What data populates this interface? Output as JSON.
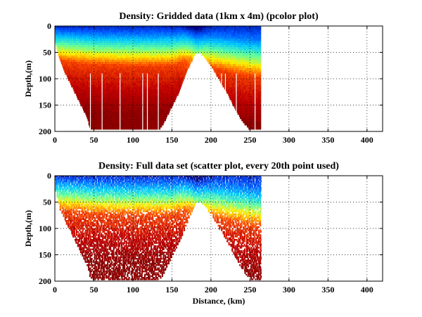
{
  "figure": {
    "background": "#ffffff"
  },
  "chart_data": [
    {
      "type": "heatmap",
      "title": "Density: Gridded data (1km x 4m) (pcolor plot)",
      "xlabel": "",
      "ylabel": "Depth,(m)",
      "xlim": [
        0,
        420
      ],
      "ylim": [
        0,
        200
      ],
      "y_reversed": true,
      "x_ticks": [
        "0",
        "50",
        "100",
        "150",
        "200",
        "250",
        "300",
        "350",
        "400"
      ],
      "y_ticks": [
        "0",
        "50",
        "100",
        "150",
        "200"
      ],
      "grid": "dotted",
      "data_x_range_km": [
        0,
        264
      ],
      "colormap": [
        "#00007f",
        "#0050ff",
        "#00c8ff",
        "#60ff9f",
        "#ffef00",
        "#ff5000",
        "#c00000",
        "#7f0000"
      ],
      "bottom_depth_profile": {
        "distance_km": [
          0,
          5,
          10,
          20,
          30,
          40,
          45,
          50,
          60,
          80,
          100,
          120,
          130,
          135,
          140,
          150,
          160,
          170,
          180,
          185,
          190,
          200,
          210,
          220,
          230,
          240,
          250,
          255,
          260,
          264
        ],
        "depth_m": [
          30,
          60,
          80,
          110,
          140,
          170,
          195,
          196,
          196,
          196,
          196,
          196,
          196,
          192,
          180,
          150,
          120,
          80,
          50,
          48,
          55,
          75,
          100,
          125,
          155,
          180,
          196,
          196,
          196,
          196
        ]
      },
      "pycnocline_depth_m": {
        "distance_km": [
          0,
          50,
          100,
          150,
          175,
          185,
          200,
          250,
          264
        ],
        "depth_m": [
          20,
          28,
          30,
          30,
          15,
          20,
          35,
          50,
          52
        ]
      }
    },
    {
      "type": "scatter",
      "title": "Density: Full data set (scatter plot, every 20th point used)",
      "xlabel": "Distance, (km)",
      "ylabel": "Depth,(m)",
      "xlim": [
        0,
        420
      ],
      "ylim": [
        0,
        200
      ],
      "y_reversed": true,
      "x_ticks": [
        "0",
        "50",
        "100",
        "150",
        "200",
        "250",
        "300",
        "350",
        "400"
      ],
      "y_ticks": [
        "0",
        "50",
        "100",
        "150",
        "200"
      ],
      "grid": "dotted",
      "data_x_range_km": [
        0,
        264
      ],
      "colormap": [
        "#00007f",
        "#0050ff",
        "#00c8ff",
        "#60ff9f",
        "#ffef00",
        "#ff5000",
        "#c00000",
        "#7f0000"
      ],
      "bottom_depth_profile": {
        "distance_km": [
          0,
          5,
          10,
          20,
          30,
          40,
          45,
          50,
          60,
          80,
          100,
          120,
          130,
          135,
          140,
          150,
          160,
          170,
          180,
          185,
          190,
          200,
          210,
          220,
          230,
          240,
          250,
          255,
          260,
          264
        ],
        "depth_m": [
          30,
          60,
          80,
          110,
          140,
          170,
          195,
          196,
          196,
          196,
          196,
          196,
          196,
          192,
          180,
          150,
          120,
          80,
          50,
          48,
          55,
          75,
          100,
          125,
          155,
          180,
          196,
          196,
          196,
          196
        ]
      },
      "pycnocline_depth_m": {
        "distance_km": [
          0,
          50,
          100,
          150,
          175,
          185,
          200,
          250,
          264
        ],
        "depth_m": [
          20,
          28,
          30,
          30,
          15,
          20,
          35,
          50,
          52
        ]
      }
    }
  ]
}
